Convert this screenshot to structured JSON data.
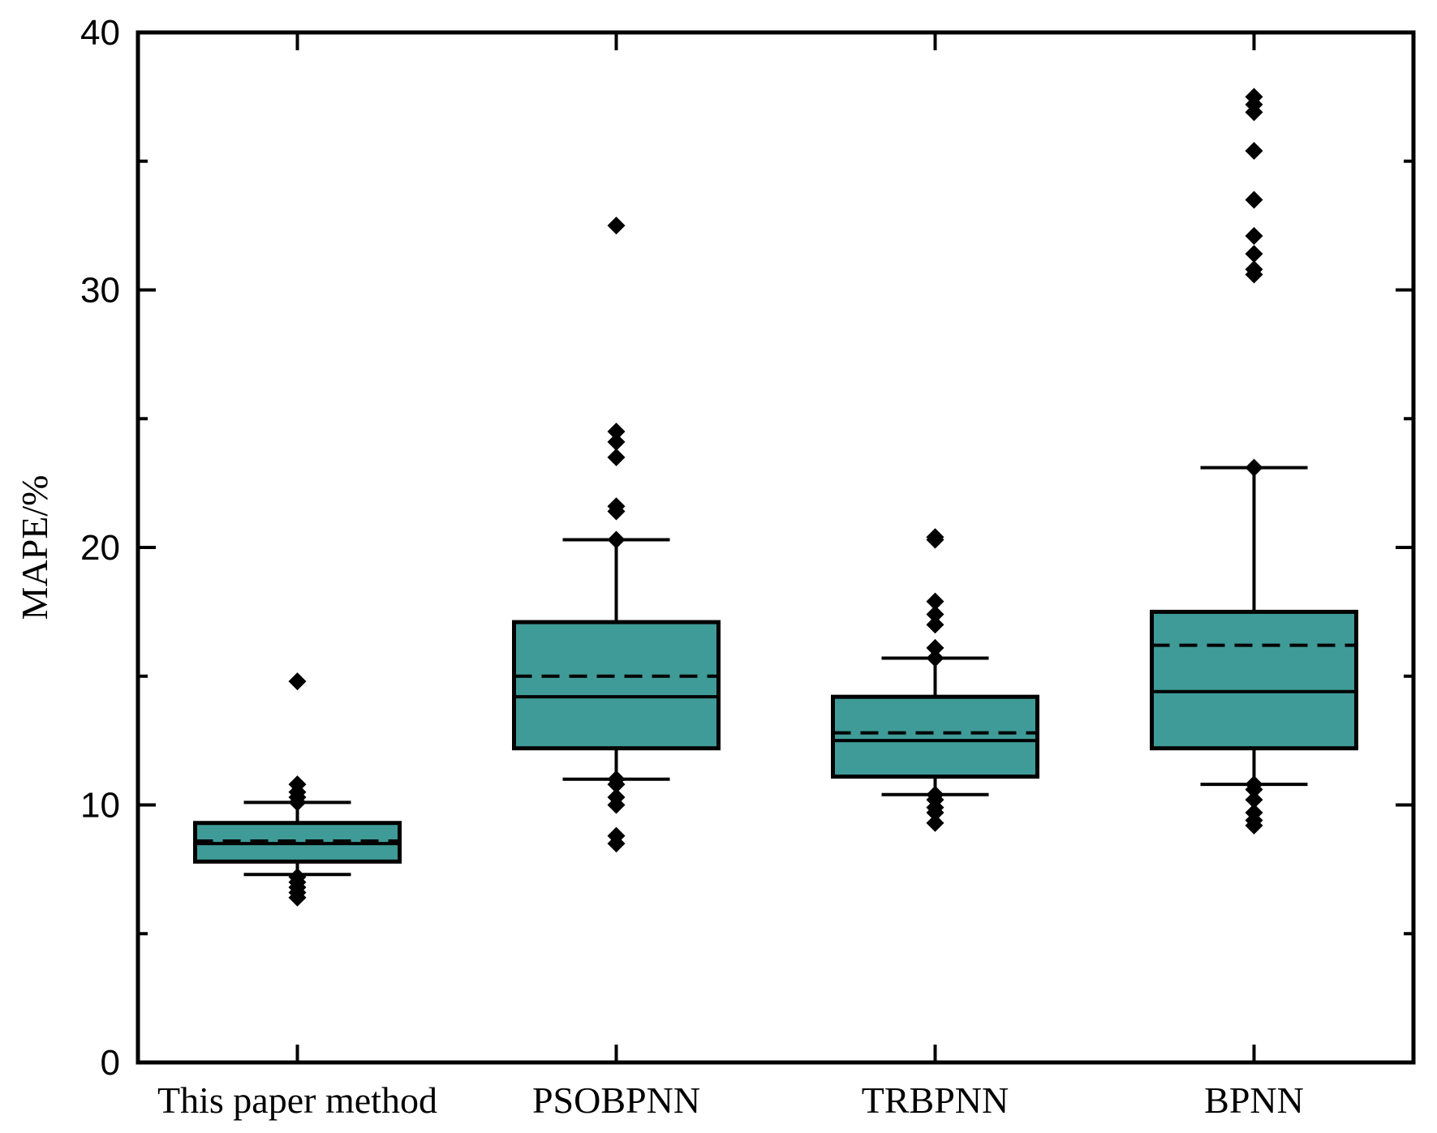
{
  "chart_data": {
    "type": "box",
    "title": "",
    "xlabel": "",
    "ylabel": "MAPE/%",
    "ylim": [
      0,
      40
    ],
    "yticks": [
      0,
      10,
      20,
      30,
      40
    ],
    "grid": false,
    "box_color": "#3f9b98",
    "mean_line": "dashed",
    "median_line": "solid",
    "categories": [
      "This paper method",
      "PSOBPNN",
      "TRBPNN",
      "BPNN"
    ],
    "series": [
      {
        "category": "This paper method",
        "whisker_low": 7.3,
        "q1": 7.8,
        "median": 8.5,
        "q3": 9.3,
        "whisker_high": 10.1,
        "mean": 8.6,
        "outliers": [
          6.4,
          6.6,
          6.8,
          7.0,
          7.2,
          10.1,
          10.3,
          10.5,
          10.8,
          14.8
        ]
      },
      {
        "category": "PSOBPNN",
        "whisker_low": 11.0,
        "q1": 12.2,
        "median": 14.2,
        "q3": 17.1,
        "whisker_high": 20.3,
        "mean": 15.0,
        "outliers": [
          8.5,
          8.8,
          10.0,
          10.3,
          10.8,
          11.0,
          20.3,
          21.4,
          21.6,
          23.5,
          24.1,
          24.5,
          32.5
        ]
      },
      {
        "category": "TRBPNN",
        "whisker_low": 10.4,
        "q1": 11.1,
        "median": 12.5,
        "q3": 14.2,
        "whisker_high": 15.7,
        "mean": 12.8,
        "outliers": [
          9.3,
          9.7,
          9.9,
          10.2,
          10.4,
          15.7,
          16.1,
          17.0,
          17.4,
          17.9,
          20.3,
          20.4
        ]
      },
      {
        "category": "BPNN",
        "whisker_low": 10.8,
        "q1": 12.2,
        "median": 14.4,
        "q3": 17.5,
        "whisker_high": 23.1,
        "mean": 16.2,
        "outliers": [
          9.2,
          9.4,
          9.7,
          10.2,
          10.6,
          10.8,
          23.1,
          30.6,
          30.8,
          31.4,
          32.1,
          33.5,
          35.4,
          36.9,
          37.2,
          37.5
        ]
      }
    ]
  }
}
